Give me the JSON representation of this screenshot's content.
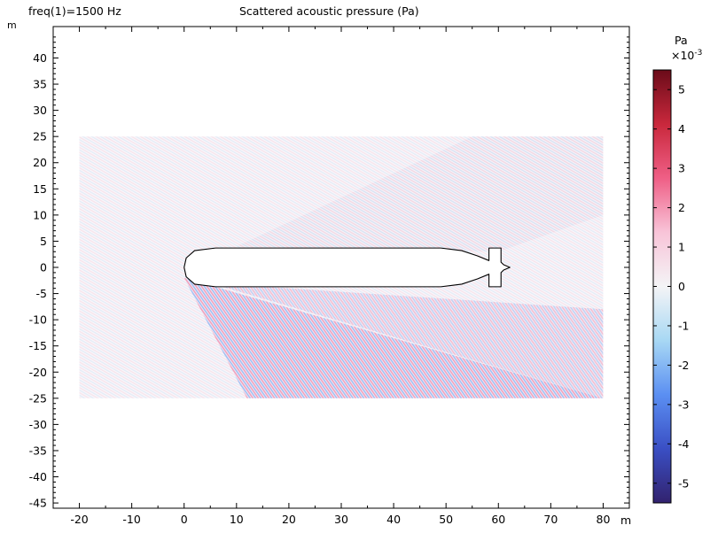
{
  "header": {
    "left_label": "freq(1)=1500 Hz",
    "title": "Scattered acoustic pressure (Pa)"
  },
  "chart_data": {
    "type": "heatmap",
    "title": "Scattered acoustic pressure (Pa)",
    "subtitle": "freq(1)=1500 Hz",
    "xlabel": "m",
    "ylabel": "m",
    "xlim": [
      -25,
      85
    ],
    "ylim": [
      -46,
      46
    ],
    "xticks": [
      -20,
      -10,
      0,
      10,
      20,
      30,
      40,
      50,
      60,
      70,
      80
    ],
    "yticks": [
      40,
      35,
      30,
      25,
      20,
      15,
      10,
      5,
      0,
      -5,
      -10,
      -15,
      -20,
      -25,
      -30,
      -35,
      -40,
      -45
    ],
    "domain": {
      "x": [
        -20,
        80
      ],
      "y": [
        -25,
        25
      ]
    },
    "body_outline": [
      [
        0,
        0
      ],
      [
        0.4,
        1.8
      ],
      [
        2,
        3.2
      ],
      [
        6,
        3.7
      ],
      [
        49,
        3.7
      ],
      [
        53,
        3.2
      ],
      [
        56,
        2.2
      ],
      [
        58.2,
        1.3
      ],
      [
        58.2,
        3.7
      ],
      [
        60.5,
        3.7
      ],
      [
        60.5,
        1.0
      ],
      [
        61,
        0.5
      ],
      [
        62.2,
        0
      ],
      [
        61,
        -0.5
      ],
      [
        60.5,
        -1.0
      ],
      [
        60.5,
        -3.7
      ],
      [
        58.2,
        -3.7
      ],
      [
        58.2,
        -1.3
      ],
      [
        56,
        -2.2
      ],
      [
        53,
        -3.2
      ],
      [
        49,
        -3.7
      ],
      [
        6,
        -3.7
      ],
      [
        2,
        -3.2
      ],
      [
        0.4,
        -1.8
      ],
      [
        0,
        0
      ]
    ],
    "colorbar": {
      "unit": "Pa",
      "scale": "×10",
      "exponent": "-3",
      "range": [
        -5.5,
        5.5
      ],
      "ticks": [
        5,
        4,
        3,
        2,
        1,
        0,
        -1,
        -2,
        -3,
        -4,
        -5
      ],
      "colors": [
        "#32226e",
        "#3a4fc4",
        "#5b8ff2",
        "#a8d8f4",
        "#f4f4f6",
        "#f8c4d8",
        "#ef5f86",
        "#c9283c",
        "#6a0b19"
      ]
    },
    "grid": false
  }
}
